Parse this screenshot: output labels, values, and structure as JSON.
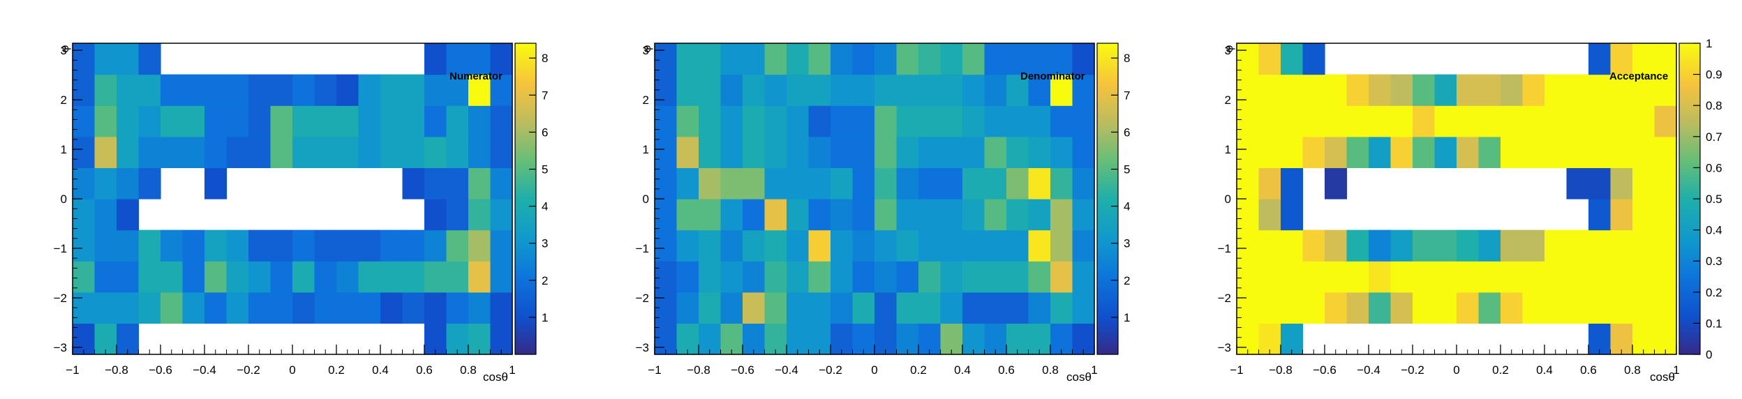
{
  "chart_data": [
    {
      "type": "heatmap",
      "title": "Numerator",
      "xlabel": "cosθ",
      "ylabel": "φ",
      "xlim": [
        -1,
        1
      ],
      "ylim": [
        -3.14159,
        3.14159
      ],
      "zlim": [
        0,
        8.4
      ],
      "x_ticks": [
        "−1",
        "−0.8",
        "−0.6",
        "−0.4",
        "−0.2",
        "0",
        "0.2",
        "0.4",
        "0.6",
        "0.8",
        "1"
      ],
      "y_ticks": [
        "−3",
        "−2",
        "−1",
        "0",
        "1",
        "2",
        "3"
      ],
      "z_ticks": [
        "1",
        "2",
        "3",
        "4",
        "5",
        "6",
        "7",
        "8"
      ],
      "note": "rows listed from phi bin 1 (bottom, -pi) to bin 10 (top, +pi); columns from cos-theta -1 to 1 in 0.1 steps; null = empty bin",
      "values": [
        [
          1,
          4,
          1.5,
          null,
          null,
          null,
          null,
          null,
          null,
          null,
          null,
          null,
          null,
          null,
          null,
          null,
          1,
          3.5,
          4,
          1
        ],
        [
          3,
          3,
          3,
          3.5,
          5,
          3,
          2,
          3,
          2,
          2,
          1.5,
          2,
          2,
          2,
          1,
          1.5,
          1,
          2,
          2.5,
          1
        ],
        [
          4.5,
          2,
          2,
          4,
          4,
          2,
          5,
          3.5,
          3,
          2,
          4,
          2,
          2.5,
          4,
          4,
          4,
          4.5,
          4.5,
          7,
          2.5
        ],
        [
          3,
          2.5,
          2.5,
          4,
          2.5,
          2,
          3.5,
          3,
          1.5,
          1.5,
          2,
          1.5,
          1.5,
          1.5,
          2,
          2,
          2.5,
          5,
          6,
          2.5
        ],
        [
          3,
          2.5,
          1,
          null,
          null,
          null,
          null,
          null,
          null,
          null,
          null,
          null,
          null,
          null,
          null,
          null,
          1,
          1.5,
          4.5,
          3
        ],
        [
          2.5,
          3,
          2.5,
          1.5,
          null,
          null,
          1,
          null,
          null,
          null,
          null,
          null,
          null,
          null,
          null,
          1,
          1.5,
          1.5,
          5,
          2.5
        ],
        [
          1.5,
          6.5,
          3.5,
          2.5,
          2.5,
          2.5,
          2,
          1.5,
          1.5,
          5,
          3.5,
          3.5,
          3.5,
          3,
          3.5,
          3.5,
          4,
          3.5,
          2.5,
          1.5
        ],
        [
          2,
          5,
          3.5,
          3,
          4,
          4,
          2,
          2,
          1.5,
          5,
          4,
          4,
          4,
          3,
          3.5,
          3.5,
          2,
          3.5,
          2.5,
          1.5
        ],
        [
          1.5,
          4.5,
          3.5,
          3.5,
          2,
          2,
          2,
          2,
          1.5,
          1.5,
          2,
          1.5,
          1,
          3,
          3.5,
          3.5,
          2.5,
          2.5,
          8.4,
          2
        ],
        [
          1.5,
          3,
          3,
          1.5,
          null,
          null,
          null,
          null,
          null,
          null,
          null,
          null,
          null,
          null,
          null,
          null,
          1,
          2,
          2,
          1
        ]
      ]
    },
    {
      "type": "heatmap",
      "title": "Denominator",
      "xlabel": "cosθ",
      "ylabel": "φ",
      "xlim": [
        -1,
        1
      ],
      "ylim": [
        -3.14159,
        3.14159
      ],
      "zlim": [
        0,
        8.4
      ],
      "x_ticks": [
        "−1",
        "−0.8",
        "−0.6",
        "−0.4",
        "−0.2",
        "0",
        "0.2",
        "0.4",
        "0.6",
        "0.8",
        "1"
      ],
      "y_ticks": [
        "−3",
        "−2",
        "−1",
        "0",
        "1",
        "2",
        "3"
      ],
      "z_ticks": [
        "1",
        "2",
        "3",
        "4",
        "5",
        "6",
        "7",
        "8"
      ],
      "note": "rows listed from phi bin 1 (bottom, -pi) to bin 10 (top, +pi); columns from cos-theta -1 to 1 in 0.1 steps",
      "values": [
        [
          1.5,
          4,
          3,
          5,
          2.5,
          4.5,
          3,
          3,
          1.5,
          2,
          1.5,
          2.5,
          2,
          5.5,
          3,
          2.5,
          4,
          4,
          2,
          1
        ],
        [
          1.5,
          2.5,
          4,
          2.5,
          6.5,
          5,
          3,
          3,
          2.5,
          4,
          1.5,
          4,
          4,
          3,
          1.5,
          1.5,
          1.5,
          2.5,
          4,
          3
        ],
        [
          1.5,
          2,
          3.5,
          3,
          2.5,
          4.5,
          3.5,
          5,
          3,
          2,
          2.5,
          2,
          4.5,
          3.5,
          4,
          4,
          4,
          5,
          7,
          3
        ],
        [
          2,
          3,
          3.5,
          2.5,
          3.5,
          4,
          3,
          7.5,
          3,
          2.5,
          3,
          3.5,
          3,
          3,
          3,
          3,
          3,
          8,
          6,
          2.5
        ],
        [
          2,
          5,
          5,
          3,
          2,
          7,
          3.5,
          2,
          2.5,
          2,
          5,
          3,
          3,
          3,
          3.5,
          5,
          4,
          3.5,
          6,
          3
        ],
        [
          2,
          3,
          6,
          5.5,
          5.5,
          3,
          3,
          3,
          3.5,
          2,
          4.5,
          2.5,
          2,
          2,
          4,
          4,
          5.5,
          8,
          4.5,
          2.5
        ],
        [
          2,
          6.5,
          4,
          3,
          4,
          3.5,
          3,
          2.5,
          2,
          2,
          5,
          3.5,
          3,
          3,
          3,
          5,
          4,
          3.5,
          3,
          2
        ],
        [
          2,
          5,
          4,
          3,
          4,
          3.5,
          3,
          1.5,
          2,
          2,
          5,
          4,
          4,
          4,
          3.5,
          3,
          3,
          3,
          2,
          2
        ],
        [
          1.5,
          4,
          4,
          2.5,
          3.5,
          3,
          3.5,
          3.5,
          3,
          3,
          3.5,
          3.5,
          3.5,
          3.5,
          3,
          2.5,
          3.5,
          2,
          8.4,
          2
        ],
        [
          1.5,
          4,
          4,
          3,
          3,
          5,
          4,
          5,
          2.5,
          2,
          2.5,
          5,
          4.5,
          4,
          5,
          2,
          2,
          2,
          2,
          1
        ]
      ]
    },
    {
      "type": "heatmap",
      "title": "Acceptance",
      "xlabel": "cosθ",
      "ylabel": "φ",
      "xlim": [
        -1,
        1
      ],
      "ylim": [
        -3.14159,
        3.14159
      ],
      "zlim": [
        0,
        1
      ],
      "x_ticks": [
        "−1",
        "−0.8",
        "−0.6",
        "−0.4",
        "−0.2",
        "0",
        "0.2",
        "0.4",
        "0.6",
        "0.8",
        "1"
      ],
      "y_ticks": [
        "−3",
        "−2",
        "−1",
        "0",
        "1",
        "2",
        "3"
      ],
      "z_ticks": [
        "0",
        "0.1",
        "0.2",
        "0.3",
        "0.4",
        "0.5",
        "0.6",
        "0.7",
        "0.8",
        "0.9",
        "1"
      ],
      "note": "rows listed from phi bin 1 (bottom, -pi) to bin 10 (top, +pi); columns from cos-theta -1 to 1 in 0.1 steps; null = empty bin",
      "values": [
        [
          1,
          0.95,
          0.4,
          null,
          null,
          null,
          null,
          null,
          null,
          null,
          null,
          null,
          null,
          null,
          null,
          null,
          0.15,
          0.85,
          1,
          1
        ],
        [
          1,
          1,
          1,
          1,
          0.9,
          0.8,
          0.55,
          0.8,
          1,
          1,
          0.9,
          0.6,
          0.9,
          1,
          1,
          1,
          1,
          1,
          1,
          1
        ],
        [
          1,
          1,
          1,
          1,
          1,
          1,
          0.95,
          1,
          1,
          1,
          1,
          1,
          1,
          1,
          1,
          1,
          1,
          1,
          1,
          1
        ],
        [
          1,
          1,
          1,
          0.9,
          0.8,
          0.5,
          0.3,
          0.4,
          0.55,
          0.55,
          0.5,
          0.4,
          0.75,
          0.75,
          1,
          1,
          1,
          1,
          1,
          1
        ],
        [
          1,
          0.75,
          0.15,
          null,
          null,
          null,
          null,
          null,
          null,
          null,
          null,
          null,
          null,
          null,
          null,
          null,
          0.15,
          0.85,
          1,
          1
        ],
        [
          1,
          0.85,
          0.15,
          null,
          0.05,
          null,
          null,
          null,
          null,
          null,
          null,
          null,
          null,
          null,
          null,
          0.1,
          0.1,
          0.75,
          1,
          1
        ],
        [
          1,
          1,
          1,
          0.9,
          0.8,
          0.6,
          0.4,
          0.9,
          0.6,
          0.4,
          0.8,
          0.6,
          1,
          1,
          1,
          1,
          1,
          1,
          1,
          1
        ],
        [
          1,
          1,
          1,
          1,
          1,
          1,
          1,
          1,
          0.9,
          1,
          1,
          1,
          1,
          1,
          1,
          1,
          1,
          1,
          1,
          0.85
        ],
        [
          1,
          1,
          1,
          1,
          1,
          0.9,
          0.8,
          0.75,
          0.6,
          0.45,
          0.8,
          0.8,
          0.75,
          0.9,
          1,
          1,
          1,
          1,
          1,
          1
        ],
        [
          1,
          0.9,
          0.5,
          0.15,
          null,
          null,
          null,
          null,
          null,
          null,
          null,
          null,
          null,
          null,
          null,
          null,
          0.15,
          0.9,
          1,
          1
        ]
      ]
    }
  ]
}
